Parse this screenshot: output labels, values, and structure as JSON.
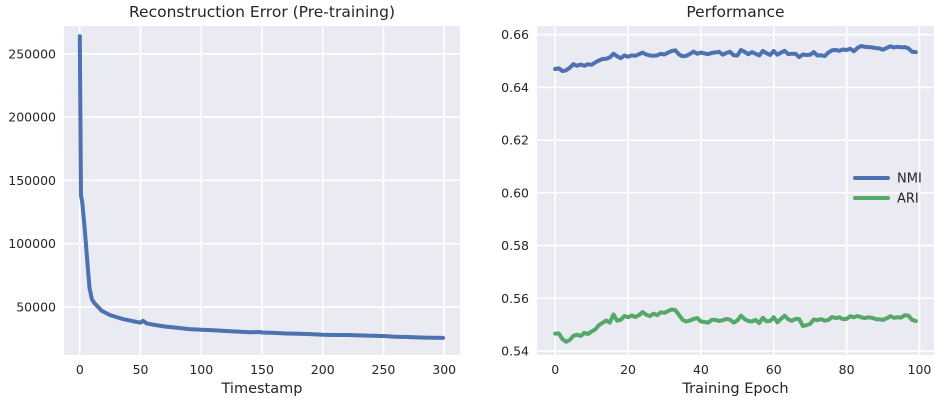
{
  "chart_data": [
    {
      "type": "line",
      "title": "Reconstruction Error (Pre-training)",
      "xlabel": "Timestamp",
      "ylabel": "",
      "xlim": [
        -13,
        313
      ],
      "ylim": [
        12000,
        272000
      ],
      "xticks": [
        "0",
        "50",
        "100",
        "150",
        "200",
        "250",
        "300"
      ],
      "yticks": [
        "50000",
        "100000",
        "150000",
        "200000",
        "250000"
      ],
      "grid": true,
      "series": [
        {
          "color": "#4c72b0",
          "x": [
            0,
            1,
            2,
            4,
            6,
            8,
            10,
            12,
            15,
            18,
            20,
            25,
            30,
            35,
            40,
            45,
            50,
            52,
            55,
            60,
            70,
            80,
            90,
            100,
            110,
            120,
            130,
            140,
            148,
            150,
            160,
            170,
            180,
            190,
            200,
            210,
            220,
            230,
            240,
            250,
            260,
            270,
            280,
            290,
            299
          ],
          "y": [
            264000,
            138000,
            133000,
            112000,
            88000,
            65000,
            56000,
            53000,
            50000,
            47000,
            46000,
            43500,
            42000,
            40500,
            39500,
            38500,
            37500,
            39000,
            37000,
            36000,
            34500,
            33500,
            32500,
            32000,
            31500,
            31000,
            30500,
            30000,
            30200,
            29800,
            29500,
            29000,
            28800,
            28500,
            28000,
            27800,
            27800,
            27500,
            27200,
            27000,
            26500,
            26200,
            25800,
            25600,
            25500
          ]
        }
      ]
    },
    {
      "type": "line",
      "title": "Performance",
      "xlabel": "Training Epoch",
      "ylabel": "",
      "xlim": [
        -5,
        104
      ],
      "ylim": [
        0.5385,
        0.6633
      ],
      "xticks": [
        "0",
        "20",
        "40",
        "60",
        "80",
        "100"
      ],
      "yticks": [
        "0.54",
        "0.56",
        "0.58",
        "0.60",
        "0.62",
        "0.64",
        "0.66"
      ],
      "grid": true,
      "legend": "center-right",
      "series": [
        {
          "name": "NMI",
          "color": "#4c72b0",
          "x": [
            0,
            1,
            2,
            3,
            4,
            5,
            6,
            7,
            8,
            9,
            10,
            11,
            12,
            13,
            14,
            15,
            16,
            17,
            18,
            19,
            20,
            21,
            22,
            23,
            24,
            25,
            26,
            27,
            28,
            29,
            30,
            31,
            32,
            33,
            34,
            35,
            36,
            37,
            38,
            39,
            40,
            41,
            42,
            43,
            44,
            45,
            46,
            47,
            48,
            49,
            50,
            51,
            52,
            53,
            54,
            55,
            56,
            57,
            58,
            59,
            60,
            61,
            62,
            63,
            64,
            65,
            66,
            67,
            68,
            69,
            70,
            71,
            72,
            73,
            74,
            75,
            76,
            77,
            78,
            79,
            80,
            81,
            82,
            83,
            84,
            85,
            86,
            87,
            88,
            89,
            90,
            91,
            92,
            93,
            94,
            95,
            96,
            97,
            98,
            99
          ],
          "y": [
            0.647,
            0.6472,
            0.6462,
            0.6465,
            0.6475,
            0.6488,
            0.6482,
            0.6487,
            0.6482,
            0.6488,
            0.6486,
            0.6495,
            0.6502,
            0.6508,
            0.6509,
            0.6514,
            0.6528,
            0.6518,
            0.6511,
            0.6521,
            0.6516,
            0.6522,
            0.652,
            0.6526,
            0.6532,
            0.6525,
            0.6521,
            0.652,
            0.6522,
            0.6527,
            0.6525,
            0.6532,
            0.6538,
            0.6541,
            0.6525,
            0.6518,
            0.652,
            0.6527,
            0.6536,
            0.6528,
            0.6532,
            0.6529,
            0.6526,
            0.6531,
            0.6533,
            0.6535,
            0.6524,
            0.6531,
            0.6535,
            0.6522,
            0.6521,
            0.6542,
            0.6535,
            0.6526,
            0.6534,
            0.6528,
            0.6521,
            0.6538,
            0.653,
            0.6523,
            0.6538,
            0.6524,
            0.6532,
            0.6539,
            0.6526,
            0.6528,
            0.6527,
            0.6515,
            0.6525,
            0.6523,
            0.6524,
            0.6534,
            0.6521,
            0.6522,
            0.6519,
            0.6532,
            0.6541,
            0.6542,
            0.6539,
            0.6544,
            0.6542,
            0.6547,
            0.6537,
            0.655,
            0.6557,
            0.6554,
            0.6553,
            0.6552,
            0.6549,
            0.6548,
            0.6543,
            0.655,
            0.6556,
            0.6552,
            0.6554,
            0.6552,
            0.6553,
            0.6548,
            0.6535,
            0.6534
          ]
        },
        {
          "name": "ARI",
          "color": "#55a868",
          "x": [
            0,
            1,
            2,
            3,
            4,
            5,
            6,
            7,
            8,
            9,
            10,
            11,
            12,
            13,
            14,
            15,
            16,
            17,
            18,
            19,
            20,
            21,
            22,
            23,
            24,
            25,
            26,
            27,
            28,
            29,
            30,
            31,
            32,
            33,
            34,
            35,
            36,
            37,
            38,
            39,
            40,
            41,
            42,
            43,
            44,
            45,
            46,
            47,
            48,
            49,
            50,
            51,
            52,
            53,
            54,
            55,
            56,
            57,
            58,
            59,
            60,
            61,
            62,
            63,
            64,
            65,
            66,
            67,
            68,
            69,
            70,
            71,
            72,
            73,
            74,
            75,
            76,
            77,
            78,
            79,
            80,
            81,
            82,
            83,
            84,
            85,
            86,
            87,
            88,
            89,
            90,
            91,
            92,
            93,
            94,
            95,
            96,
            97,
            98,
            99
          ],
          "y": [
            0.5466,
            0.5467,
            0.5445,
            0.5435,
            0.5442,
            0.5458,
            0.5462,
            0.5457,
            0.5469,
            0.5465,
            0.5474,
            0.5482,
            0.5498,
            0.5507,
            0.5516,
            0.5508,
            0.5539,
            0.5515,
            0.5519,
            0.5533,
            0.5528,
            0.5535,
            0.5529,
            0.5536,
            0.5548,
            0.5538,
            0.5532,
            0.5542,
            0.5536,
            0.5547,
            0.5545,
            0.5552,
            0.5558,
            0.5555,
            0.5537,
            0.5518,
            0.5512,
            0.5516,
            0.5522,
            0.5525,
            0.5512,
            0.551,
            0.5508,
            0.5518,
            0.5518,
            0.5514,
            0.5517,
            0.5522,
            0.5519,
            0.5508,
            0.5516,
            0.5534,
            0.5521,
            0.5514,
            0.5512,
            0.5518,
            0.5506,
            0.5526,
            0.5513,
            0.5514,
            0.5528,
            0.5509,
            0.5522,
            0.5534,
            0.552,
            0.5515,
            0.5522,
            0.5521,
            0.5495,
            0.5498,
            0.5503,
            0.552,
            0.5517,
            0.5521,
            0.5515,
            0.5518,
            0.5529,
            0.5525,
            0.5528,
            0.5521,
            0.5522,
            0.5532,
            0.5528,
            0.5533,
            0.5528,
            0.5525,
            0.5528,
            0.5526,
            0.5521,
            0.552,
            0.5518,
            0.5524,
            0.5532,
            0.5526,
            0.5528,
            0.5527,
            0.5536,
            0.5534,
            0.5518,
            0.5514
          ]
        }
      ]
    }
  ]
}
